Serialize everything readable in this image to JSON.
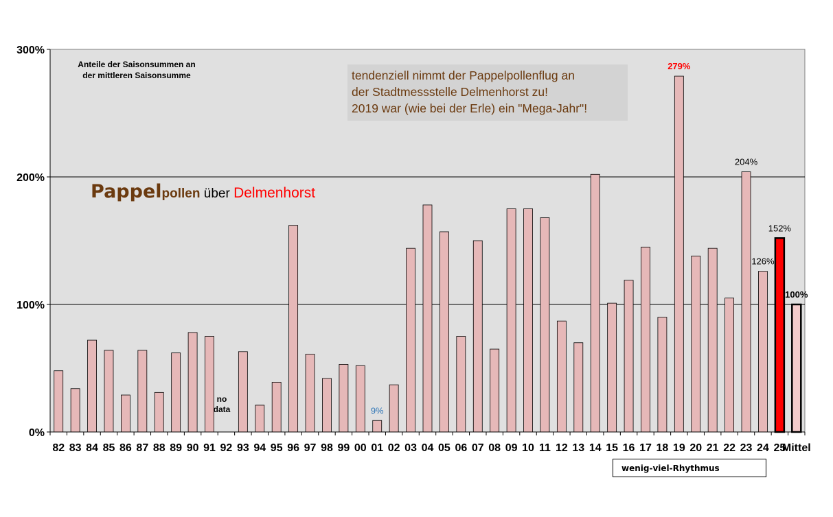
{
  "chart_data": {
    "type": "bar",
    "categories": [
      "82",
      "83",
      "84",
      "85",
      "86",
      "87",
      "88",
      "89",
      "90",
      "91",
      "92",
      "93",
      "94",
      "95",
      "96",
      "97",
      "98",
      "99",
      "00",
      "01",
      "02",
      "03",
      "04",
      "05",
      "06",
      "07",
      "08",
      "09",
      "10",
      "11",
      "12",
      "13",
      "14",
      "15",
      "16",
      "17",
      "18",
      "19",
      "20",
      "21",
      "22",
      "23",
      "24",
      "25",
      "Mittel"
    ],
    "values": [
      48,
      34,
      72,
      64,
      29,
      64,
      31,
      62,
      78,
      75,
      null,
      63,
      21,
      39,
      162,
      61,
      42,
      53,
      52,
      9,
      37,
      144,
      178,
      157,
      75,
      150,
      65,
      175,
      175,
      168,
      87,
      70,
      202,
      101,
      119,
      145,
      90,
      279,
      138,
      144,
      105,
      204,
      126,
      152,
      100
    ],
    "ylim": [
      0,
      300
    ],
    "yticks": [
      "0%",
      "100%",
      "200%",
      "300%"
    ],
    "grid": true,
    "colors": {
      "bar": "#e6b8b8",
      "highlight": "#ff0000",
      "mittel": "#f4cccc",
      "plot_bg": "#e0e0e0"
    },
    "data_labels": [
      {
        "category": "01",
        "text": "9%",
        "color": "#2e75b6",
        "bold": false
      },
      {
        "category": "19",
        "text": "279%",
        "color": "#ff0000",
        "bold": true
      },
      {
        "category": "23",
        "text": "204%",
        "color": "#000000",
        "bold": false
      },
      {
        "category": "24",
        "text": "126%",
        "color": "#000000",
        "bold": false
      },
      {
        "category": "25",
        "text": "152%",
        "color": "#000000",
        "bold": false
      },
      {
        "category": "Mittel",
        "text": "100%",
        "color": "#000000",
        "bold": true
      }
    ]
  },
  "subtitle_lines": [
    "Anteile der Saisonsummen  an",
    "der mittleren Saisonsumme"
  ],
  "trend_lines": [
    "tendenziell  nimmt  der Pappelpollenflug  an",
    "der Stadtmessstelle Delmenhorst  zu!",
    "2019 war (wie bei der Erle) ein \"Mega-Jahr\"!"
  ],
  "title": {
    "part1": "Pappel",
    "part2": "pollen",
    "part3": " über ",
    "part4": "Delmenhorst"
  },
  "no_data_lines": [
    "no",
    "data"
  ],
  "rhythm_label": "wenig-viel-Rhythmus"
}
